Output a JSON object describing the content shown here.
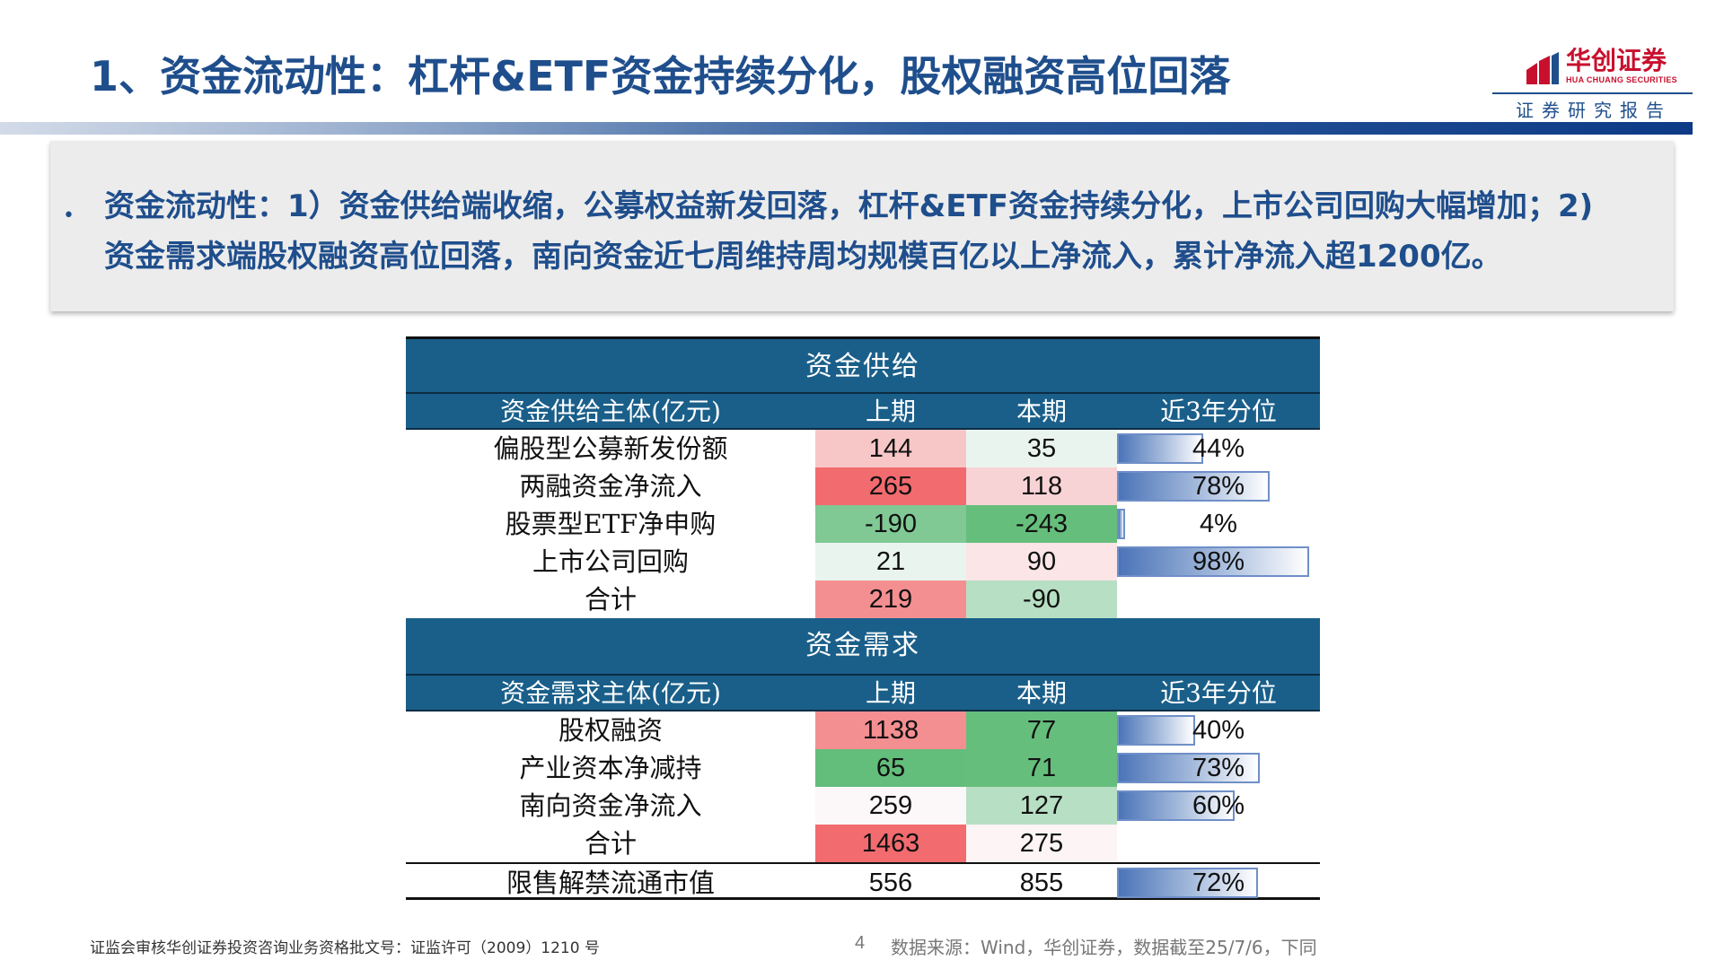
{
  "header": {
    "title": "1、资金流动性：杠杆&ETF资金持续分化，股权融资高位回落",
    "logo_cn": "华创证券",
    "logo_en": "HUA CHUANG SECURITIES",
    "report_label": "证券研究报告"
  },
  "summary": {
    "bullet": "•",
    "line1": "资金流动性：1）资金供给端收缩，公募权益新发回落，杠杆&ETF资金持续分化，上市公司回购大幅增加；2)",
    "line2": "资金需求端股权融资高位回落，南向资金近七周维持周均规模百亿以上净流入，累计净流入超1200亿。"
  },
  "colors": {
    "title_blue": "#1f4e8c",
    "band_blue": "#1a5f8a",
    "logo_red": "#c8102e"
  },
  "table": {
    "supply": {
      "band": "资金供给",
      "headers": [
        "资金供给主体(亿元)",
        "上期",
        "本期",
        "近3年分位"
      ],
      "rows": [
        {
          "label": "偏股型公募新发份额",
          "prev": "144",
          "curr": "35",
          "pct": "44%",
          "pct_value": 0.44,
          "prev_bg": "#f7c7c8",
          "curr_bg": "#eaf4ef"
        },
        {
          "label": "两融资金净流入",
          "prev": "265",
          "curr": "118",
          "pct": "78%",
          "pct_value": 0.78,
          "prev_bg": "#f26b6e",
          "curr_bg": "#f8d3d5"
        },
        {
          "label": "股票型ETF净申购",
          "prev": "-190",
          "curr": "-243",
          "pct": "4%",
          "pct_value": 0.04,
          "prev_bg": "#80c995",
          "curr_bg": "#66be7c"
        },
        {
          "label": "上市公司回购",
          "prev": "21",
          "curr": "90",
          "pct": "98%",
          "pct_value": 0.98,
          "prev_bg": "#e9f4ee",
          "curr_bg": "#fbe5e7"
        },
        {
          "label": "合计",
          "prev": "219",
          "curr": "-90",
          "pct": "",
          "pct_value": null,
          "prev_bg": "#f48f91",
          "curr_bg": "#b7dfc3"
        }
      ]
    },
    "demand": {
      "band": "资金需求",
      "headers": [
        "资金需求主体(亿元)",
        "上期",
        "本期",
        "近3年分位"
      ],
      "rows": [
        {
          "label": "股权融资",
          "prev": "1138",
          "curr": "77",
          "pct": "40%",
          "pct_value": 0.4,
          "prev_bg": "#f48f91",
          "curr_bg": "#66be7c"
        },
        {
          "label": "产业资本净减持",
          "prev": "65",
          "curr": "71",
          "pct": "73%",
          "pct_value": 0.73,
          "prev_bg": "#63bd7b",
          "curr_bg": "#66be7c"
        },
        {
          "label": "南向资金净流入",
          "prev": "259",
          "curr": "127",
          "pct": "60%",
          "pct_value": 0.6,
          "prev_bg": "#fcf7f8",
          "curr_bg": "#b7dfc3"
        },
        {
          "label": "合计",
          "prev": "1463",
          "curr": "275",
          "pct": "",
          "pct_value": null,
          "prev_bg": "#f26b6e",
          "curr_bg": "#fcf4f5"
        }
      ]
    },
    "unlock": {
      "label": "限售解禁流通市值",
      "prev": "556",
      "curr": "855",
      "pct": "72%",
      "pct_value": 0.72
    }
  },
  "footer": {
    "license": "证监会审核华创证券投资咨询业务资格批文号：证监许可（2009）1210 号",
    "page": "4",
    "source": "数据来源：Wind，华创证券，数据截至25/7/6，下同"
  }
}
